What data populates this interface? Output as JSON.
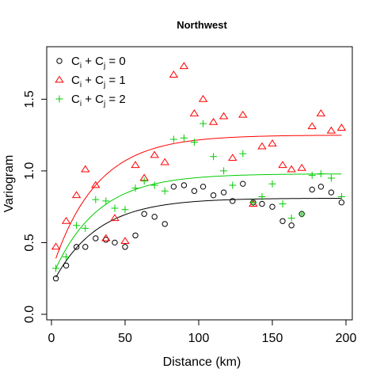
{
  "chart_data": {
    "type": "scatter",
    "title": "Northwest",
    "xlabel": "Distance (km)",
    "ylabel": "Variogram",
    "xlim": [
      0,
      200
    ],
    "ylim": [
      0.0,
      1.8
    ],
    "xticks": [
      0,
      50,
      100,
      150,
      200
    ],
    "xtick_labels": [
      "0",
      "50",
      "100",
      "150",
      "200"
    ],
    "yticks": [
      0.0,
      0.5,
      1.0,
      1.5
    ],
    "ytick_labels": [
      "0.0",
      "0.5",
      "1.0",
      "1.5"
    ],
    "grid": false,
    "legend_position": "top-left",
    "series": [
      {
        "name": "Ci + Cj = 0",
        "legend_main": "C",
        "legend_sub1": "i",
        "legend_mid": " + C",
        "legend_sub2": "j",
        "legend_tail": " = 0",
        "color": "#000000",
        "marker": "circle",
        "x": [
          3,
          10,
          17,
          23,
          30,
          37,
          43,
          50,
          57,
          63,
          70,
          77,
          83,
          90,
          97,
          103,
          110,
          117,
          123,
          130,
          137,
          143,
          150,
          157,
          163,
          170,
          177,
          183,
          190,
          197
        ],
        "y": [
          0.25,
          0.34,
          0.47,
          0.47,
          0.53,
          0.52,
          0.5,
          0.47,
          0.55,
          0.7,
          0.68,
          0.63,
          0.89,
          0.9,
          0.86,
          0.89,
          0.83,
          0.85,
          0.79,
          0.91,
          0.78,
          0.77,
          0.75,
          0.65,
          0.62,
          0.7,
          0.87,
          0.89,
          0.85,
          0.78
        ],
        "fit": {
          "nugget": 0.2,
          "sill": 0.81,
          "range": 30
        }
      },
      {
        "name": "Ci + Cj = 1",
        "legend_main": "C",
        "legend_sub1": "i",
        "legend_mid": " + C",
        "legend_sub2": "j",
        "legend_tail": " = 1",
        "color": "#ff0000",
        "marker": "triangle",
        "x": [
          3,
          10,
          17,
          23,
          30,
          37,
          43,
          50,
          57,
          63,
          70,
          77,
          83,
          90,
          97,
          103,
          110,
          117,
          123,
          130,
          137,
          143,
          150,
          157,
          163,
          170,
          177,
          183,
          190,
          197
        ],
        "y": [
          0.47,
          0.65,
          0.83,
          1.01,
          0.9,
          0.53,
          0.67,
          0.51,
          1.04,
          0.95,
          1.11,
          1.06,
          1.67,
          1.73,
          1.4,
          1.5,
          1.34,
          1.38,
          1.09,
          1.39,
          0.77,
          1.17,
          1.19,
          1.04,
          1.01,
          1.02,
          1.31,
          1.4,
          1.28,
          1.3
        ],
        "fit": {
          "nugget": 0.3,
          "sill": 1.25,
          "range": 30
        }
      },
      {
        "name": "Ci + Cj = 2",
        "legend_main": "C",
        "legend_sub1": "i",
        "legend_mid": " + C",
        "legend_sub2": "j",
        "legend_tail": " = 2",
        "color": "#00cc00",
        "marker": "plus",
        "x": [
          3,
          10,
          17,
          23,
          30,
          37,
          43,
          50,
          57,
          63,
          70,
          77,
          83,
          90,
          97,
          103,
          110,
          117,
          123,
          130,
          137,
          143,
          150,
          157,
          163,
          170,
          177,
          183,
          190,
          197
        ],
        "y": [
          0.32,
          0.4,
          0.62,
          0.6,
          0.8,
          0.79,
          0.74,
          0.73,
          0.88,
          0.93,
          0.9,
          0.86,
          1.22,
          1.23,
          1.2,
          1.33,
          1.1,
          1.0,
          0.9,
          1.12,
          0.78,
          0.82,
          0.91,
          0.77,
          0.67,
          0.7,
          0.97,
          0.98,
          0.95,
          0.82
        ],
        "fit": {
          "nugget": 0.25,
          "sill": 0.98,
          "range": 30
        }
      }
    ]
  }
}
